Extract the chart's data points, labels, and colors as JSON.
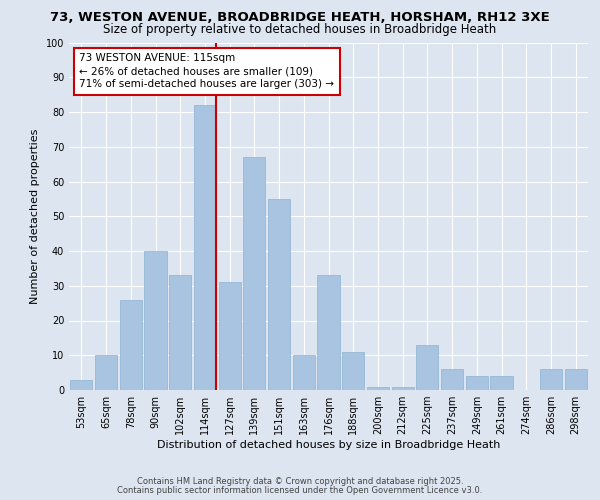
{
  "title1": "73, WESTON AVENUE, BROADBRIDGE HEATH, HORSHAM, RH12 3XE",
  "title2": "Size of property relative to detached houses in Broadbridge Heath",
  "xlabel": "Distribution of detached houses by size in Broadbridge Heath",
  "ylabel": "Number of detached properties",
  "categories": [
    "53sqm",
    "65sqm",
    "78sqm",
    "90sqm",
    "102sqm",
    "114sqm",
    "127sqm",
    "139sqm",
    "151sqm",
    "163sqm",
    "176sqm",
    "188sqm",
    "200sqm",
    "212sqm",
    "225sqm",
    "237sqm",
    "249sqm",
    "261sqm",
    "274sqm",
    "286sqm",
    "298sqm"
  ],
  "values": [
    3,
    10,
    26,
    40,
    33,
    82,
    31,
    67,
    55,
    10,
    33,
    11,
    1,
    1,
    13,
    6,
    4,
    4,
    0,
    6,
    6
  ],
  "bar_color": "#a8c4e0",
  "bar_edge_color": "#8ab4d4",
  "vline_x_idx": 5,
  "vline_color": "#cc0000",
  "annotation_text": "73 WESTON AVENUE: 115sqm\n← 26% of detached houses are smaller (109)\n71% of semi-detached houses are larger (303) →",
  "annotation_box_facecolor": "#ffffff",
  "annotation_box_edgecolor": "#cc0000",
  "ylim": [
    0,
    100
  ],
  "yticks": [
    0,
    10,
    20,
    30,
    40,
    50,
    60,
    70,
    80,
    90,
    100
  ],
  "bg_color": "#dde5f0",
  "plot_bg_color": "#dde5f0",
  "footer1": "Contains HM Land Registry data © Crown copyright and database right 2025.",
  "footer2": "Contains public sector information licensed under the Open Government Licence v3.0.",
  "title1_fontsize": 9.5,
  "title2_fontsize": 8.5,
  "xlabel_fontsize": 8,
  "ylabel_fontsize": 8,
  "tick_fontsize": 7,
  "annotation_fontsize": 7.5,
  "footer_fontsize": 6
}
